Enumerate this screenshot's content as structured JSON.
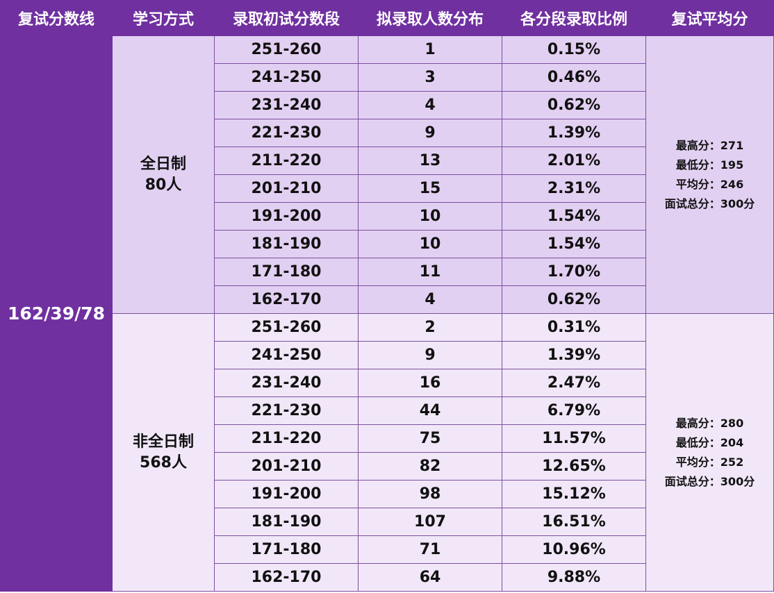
{
  "headers": [
    "复试分数线",
    "学习方式",
    "录取初试分数段",
    "拟录取人数分布",
    "各分段录取比例",
    "复试平均分"
  ],
  "cutoff": "162/39/78",
  "groups": [
    {
      "mode_name": "全日制",
      "mode_count": "80人",
      "stats": [
        "最高分：271",
        "最低分：195",
        "平均分：246",
        "面试总分：300分"
      ],
      "rows": [
        {
          "range": "251-260",
          "count": "1",
          "ratio": "0.15%"
        },
        {
          "range": "241-250",
          "count": "3",
          "ratio": "0.46%"
        },
        {
          "range": "231-240",
          "count": "4",
          "ratio": "0.62%"
        },
        {
          "range": "221-230",
          "count": "9",
          "ratio": "1.39%"
        },
        {
          "range": "211-220",
          "count": "13",
          "ratio": "2.01%"
        },
        {
          "range": "201-210",
          "count": "15",
          "ratio": "2.31%"
        },
        {
          "range": "191-200",
          "count": "10",
          "ratio": "1.54%"
        },
        {
          "range": "181-190",
          "count": "10",
          "ratio": "1.54%"
        },
        {
          "range": "171-180",
          "count": "11",
          "ratio": "1.70%"
        },
        {
          "range": "162-170",
          "count": "4",
          "ratio": "0.62%"
        }
      ]
    },
    {
      "mode_name": "非全日制",
      "mode_count": "568人",
      "stats": [
        "最高分：280",
        "最低分：204",
        "平均分：252",
        "面试总分：300分"
      ],
      "rows": [
        {
          "range": "251-260",
          "count": "2",
          "ratio": "0.31%"
        },
        {
          "range": "241-250",
          "count": "9",
          "ratio": "1.39%"
        },
        {
          "range": "231-240",
          "count": "16",
          "ratio": "2.47%"
        },
        {
          "range": "221-230",
          "count": "44",
          "ratio": "6.79%"
        },
        {
          "range": "211-220",
          "count": "75",
          "ratio": "11.57%"
        },
        {
          "range": "201-210",
          "count": "82",
          "ratio": "12.65%"
        },
        {
          "range": "191-200",
          "count": "98",
          "ratio": "15.12%"
        },
        {
          "range": "181-190",
          "count": "107",
          "ratio": "16.51%"
        },
        {
          "range": "171-180",
          "count": "71",
          "ratio": "10.96%"
        },
        {
          "range": "162-170",
          "count": "64",
          "ratio": "9.88%"
        }
      ]
    }
  ],
  "colors": {
    "header_bg": "#7030a0",
    "full_time_bg": "#e2d0f2",
    "part_time_bg": "#f1e7f8"
  }
}
